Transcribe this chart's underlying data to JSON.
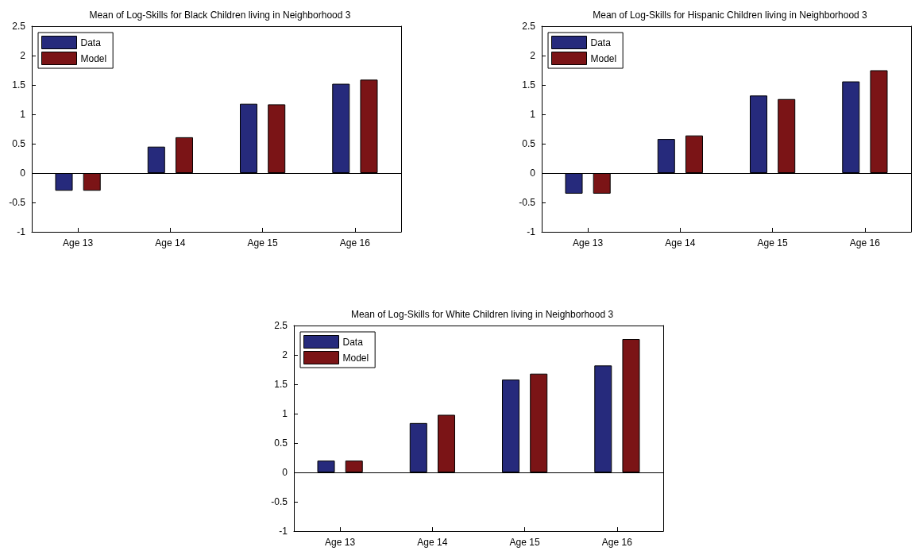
{
  "chart_data": [
    {
      "type": "bar",
      "title": "Mean of Log-Skills for Black Children living in Neighborhood 3",
      "categories": [
        "Age 13",
        "Age 14",
        "Age 15",
        "Age 16"
      ],
      "series": [
        {
          "name": "Data",
          "color": "#262a7c",
          "values": [
            -0.3,
            0.45,
            1.18,
            1.52
          ]
        },
        {
          "name": "Model",
          "color": "#7b1416",
          "values": [
            -0.3,
            0.61,
            1.17,
            1.59
          ]
        }
      ],
      "ylim": [
        -1,
        2.5
      ],
      "yticks": [
        -1,
        -0.5,
        0,
        0.5,
        1,
        1.5,
        2,
        2.5
      ],
      "grid": false,
      "legend": "top left",
      "ref_lines": [
        {
          "axis": "y",
          "value": 0
        }
      ]
    },
    {
      "type": "bar",
      "title": "Mean of Log-Skills for Hispanic Children living in Neighborhood 3",
      "categories": [
        "Age 13",
        "Age 14",
        "Age 15",
        "Age 16"
      ],
      "series": [
        {
          "name": "Data",
          "color": "#262a7c",
          "values": [
            -0.35,
            0.58,
            1.32,
            1.56
          ]
        },
        {
          "name": "Model",
          "color": "#7b1416",
          "values": [
            -0.35,
            0.64,
            1.26,
            1.75
          ]
        }
      ],
      "ylim": [
        -1,
        2.5
      ],
      "yticks": [
        -1,
        -0.5,
        0,
        0.5,
        1,
        1.5,
        2,
        2.5
      ],
      "grid": false,
      "legend": "top left",
      "ref_lines": [
        {
          "axis": "y",
          "value": 0
        }
      ]
    },
    {
      "type": "bar",
      "title": "Mean of Log-Skills for White Children living in Neighborhood 3",
      "categories": [
        "Age 13",
        "Age 14",
        "Age 15",
        "Age 16"
      ],
      "series": [
        {
          "name": "Data",
          "color": "#262a7c",
          "values": [
            0.2,
            0.84,
            1.58,
            1.82
          ]
        },
        {
          "name": "Model",
          "color": "#7b1416",
          "values": [
            0.2,
            0.98,
            1.68,
            2.27
          ]
        }
      ],
      "ylim": [
        -1,
        2.5
      ],
      "yticks": [
        -1,
        -0.5,
        0,
        0.5,
        1,
        1.5,
        2,
        2.5
      ],
      "grid": false,
      "legend": "top left",
      "ref_lines": [
        {
          "axis": "y",
          "value": 0
        }
      ]
    }
  ]
}
